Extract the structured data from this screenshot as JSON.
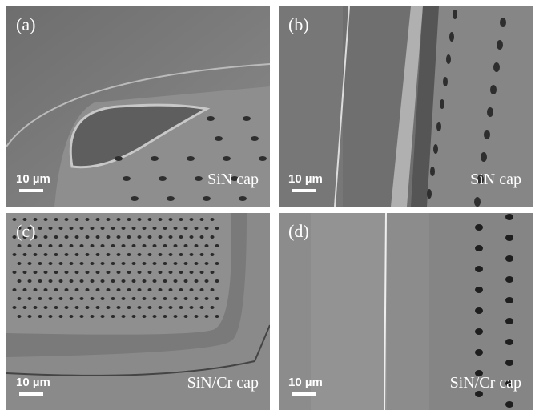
{
  "panels": [
    {
      "label": "(a)",
      "scale": "10 µm",
      "caption": "SiN cap"
    },
    {
      "label": "(b)",
      "scale": "10 µm",
      "caption": "SiN cap"
    },
    {
      "label": "(c)",
      "scale": "10 µm",
      "caption": "SiN/Cr cap"
    },
    {
      "label": "(d)",
      "scale": "10 µm",
      "caption": "SiN/Cr cap"
    }
  ]
}
